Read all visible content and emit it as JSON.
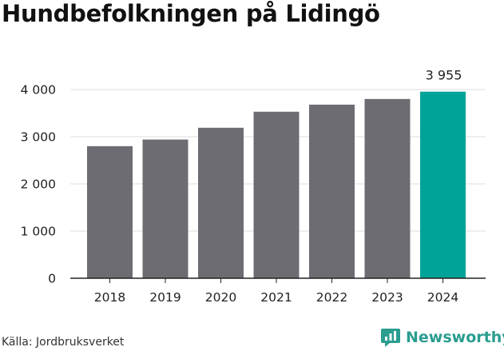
{
  "title": "Hundbefolkningen på Lidingö",
  "source": "Källa: Jordbruksverket",
  "brand": {
    "name": "Newsworthy",
    "icon": "newsworthy-logo-icon"
  },
  "colors": {
    "bar": "#6d6c72",
    "highlight": "#00a398",
    "grid": "#dddddd",
    "brand": "#2a9d8f"
  },
  "chart_data": {
    "type": "bar",
    "title": "Hundbefolkningen på Lidingö",
    "xlabel": "",
    "ylabel": "",
    "categories": [
      "2018",
      "2019",
      "2020",
      "2021",
      "2022",
      "2023",
      "2024"
    ],
    "values": [
      2800,
      2940,
      3190,
      3530,
      3680,
      3800,
      3955
    ],
    "highlight_index": 6,
    "data_labels": [
      {
        "index": 6,
        "text": "3 955"
      }
    ],
    "ylim": [
      0,
      4000
    ],
    "yticks": [
      {
        "value": 0,
        "label": "0"
      },
      {
        "value": 1000,
        "label": "1 000"
      },
      {
        "value": 2000,
        "label": "2 000"
      },
      {
        "value": 3000,
        "label": "3 000"
      },
      {
        "value": 4000,
        "label": "4 000"
      }
    ],
    "grid": true,
    "legend": "none"
  }
}
